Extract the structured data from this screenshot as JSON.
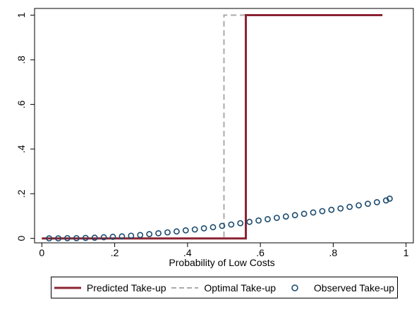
{
  "chart_data": {
    "type": "line",
    "xlabel": "Probability of Low Costs",
    "ylabel": "",
    "xlim": [
      -0.02,
      1.02
    ],
    "ylim": [
      -0.02,
      1.03
    ],
    "x_ticks": [
      0,
      0.2,
      0.4,
      0.6,
      0.8,
      1
    ],
    "x_tick_labels": [
      "0",
      ".2",
      ".4",
      ".6",
      ".8",
      "1"
    ],
    "y_ticks": [
      0,
      0.2,
      0.4,
      0.6,
      0.8,
      1
    ],
    "y_tick_labels": [
      "0",
      ".2",
      ".4",
      ".6",
      ".8",
      "1"
    ],
    "grid": false,
    "legend_position": "bottom",
    "series": [
      {
        "name": "Predicted Take-up",
        "type": "step",
        "color": "#8b2332",
        "dash": "solid",
        "x": [
          0,
          0.56,
          0.56,
          0.935
        ],
        "y": [
          0,
          0,
          1,
          1
        ]
      },
      {
        "name": "Optimal Take-up",
        "type": "step",
        "color": "#aaaaaa",
        "dash": "dashed",
        "x": [
          0,
          0.5,
          0.5,
          0.935
        ],
        "y": [
          0,
          0,
          1,
          1
        ]
      },
      {
        "name": "Observed Take-up",
        "type": "scatter",
        "color": "#1a4a6e",
        "marker": "hollow-circle",
        "x": [
          0.02,
          0.045,
          0.07,
          0.095,
          0.12,
          0.145,
          0.17,
          0.195,
          0.22,
          0.245,
          0.27,
          0.295,
          0.32,
          0.345,
          0.37,
          0.395,
          0.42,
          0.445,
          0.47,
          0.495,
          0.52,
          0.545,
          0.57,
          0.595,
          0.62,
          0.645,
          0.67,
          0.695,
          0.72,
          0.745,
          0.77,
          0.795,
          0.82,
          0.845,
          0.87,
          0.895,
          0.92,
          0.945,
          0.955
        ],
        "y": [
          0.0,
          0.0,
          0.001,
          0.001,
          0.002,
          0.003,
          0.005,
          0.007,
          0.009,
          0.012,
          0.015,
          0.019,
          0.023,
          0.027,
          0.031,
          0.036,
          0.04,
          0.045,
          0.05,
          0.056,
          0.062,
          0.068,
          0.074,
          0.08,
          0.086,
          0.092,
          0.098,
          0.104,
          0.11,
          0.116,
          0.122,
          0.128,
          0.134,
          0.141,
          0.148,
          0.155,
          0.162,
          0.17,
          0.178
        ]
      }
    ]
  }
}
